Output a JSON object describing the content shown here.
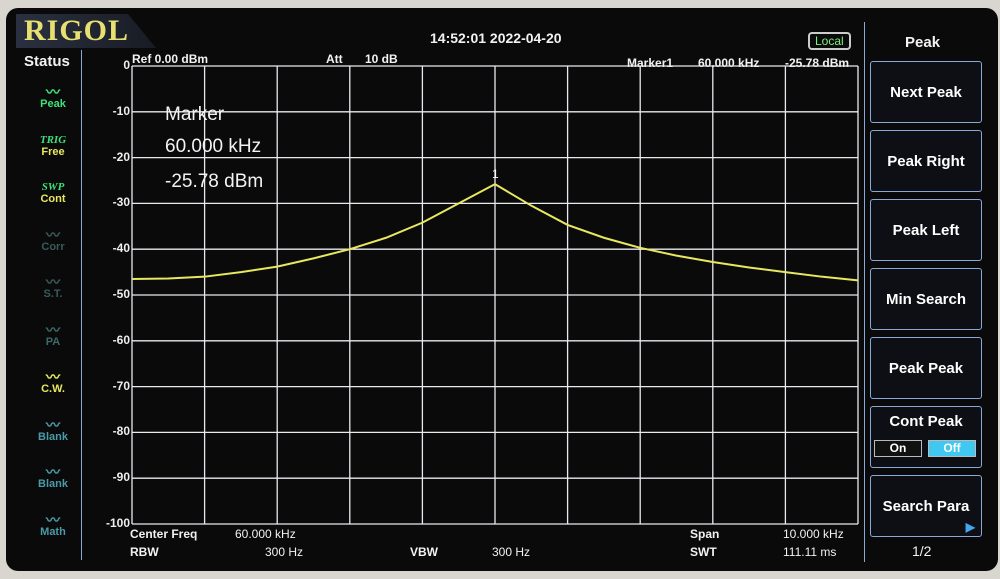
{
  "header": {
    "brand": "RIGOL",
    "datetime": "14:52:01  2022-04-20",
    "mode_badge": "Local",
    "ref": "Ref  0.00 dBm",
    "att_label": "Att",
    "att_value": "10 dB",
    "marker_readout": {
      "name": "Marker1",
      "freq": "60.000 kHz",
      "level": "-25.78 dBm"
    }
  },
  "status": {
    "title": "Status",
    "items": [
      {
        "icon": "peak-icon",
        "label": "Peak",
        "color": "#3fe07a"
      },
      {
        "top": "TRIG",
        "label": "Free",
        "color": "#e8e860"
      },
      {
        "top": "SWP",
        "label": "Cont",
        "color": "#e8e860"
      },
      {
        "icon": "corr-icon",
        "label": "Corr",
        "color": "#3a5a5a"
      },
      {
        "icon": "st-icon",
        "label": "S.T.",
        "color": "#3a5a5a"
      },
      {
        "icon": "pa-icon",
        "label": "PA",
        "color": "#3a6a6a"
      },
      {
        "icon": "cw-icon",
        "label": "C.W.",
        "color": "#e8e860"
      },
      {
        "icon": "blank-icon",
        "label": "Blank",
        "color": "#4a9aa8"
      },
      {
        "icon": "blank-icon",
        "label": "Blank",
        "color": "#4a9aa8"
      },
      {
        "icon": "math-icon",
        "label": "Math",
        "color": "#4a9aa8"
      }
    ]
  },
  "marker_box": {
    "title": "Marker",
    "freq": "60.000 kHz",
    "level": "-25.78 dBm"
  },
  "footer": {
    "center_label": "Center Freq",
    "center_value": "60.000 kHz",
    "span_label": "Span",
    "span_value": "10.000 kHz",
    "rbw_label": "RBW",
    "rbw_value": "300 Hz",
    "vbw_label": "VBW",
    "vbw_value": "300 Hz",
    "swt_label": "SWT",
    "swt_value": "111.11 ms"
  },
  "menu": {
    "title": "Peak",
    "keys": [
      "Next Peak",
      "Peak Right",
      "Peak Left",
      "Min Search",
      "Peak Peak"
    ],
    "cont_peak": "Cont Peak",
    "on": "On",
    "off": "Off",
    "search_para": "Search Para",
    "page": "1/2"
  },
  "chart_data": {
    "type": "line",
    "xlabel": "",
    "ylabel": "",
    "x_unit": "kHz",
    "y_unit": "dBm",
    "xlim": [
      55,
      65
    ],
    "ylim": [
      -100,
      0
    ],
    "yticks": [
      "0",
      "-10",
      "-20",
      "-30",
      "-40",
      "-50",
      "-60",
      "-70",
      "-80",
      "-90",
      "-100"
    ],
    "grid": true,
    "trace_color": "#e8e860",
    "series": [
      {
        "x": [
          55,
          55.5,
          56,
          56.5,
          57,
          57.5,
          58,
          58.5,
          59,
          59.5,
          60,
          60.5,
          61,
          61.5,
          62,
          62.5,
          63,
          63.5,
          64,
          64.5,
          65
        ],
        "values": [
          -46.5,
          -46.4,
          -46,
          -45,
          -43.8,
          -42,
          -40,
          -37.5,
          -34.2,
          -30,
          -25.8,
          -30.5,
          -34.7,
          -37.5,
          -39.7,
          -41.4,
          -42.8,
          -44,
          -45,
          -46,
          -46.8
        ]
      }
    ],
    "marker": {
      "label": "1",
      "x": 60,
      "y": -25.78
    }
  }
}
